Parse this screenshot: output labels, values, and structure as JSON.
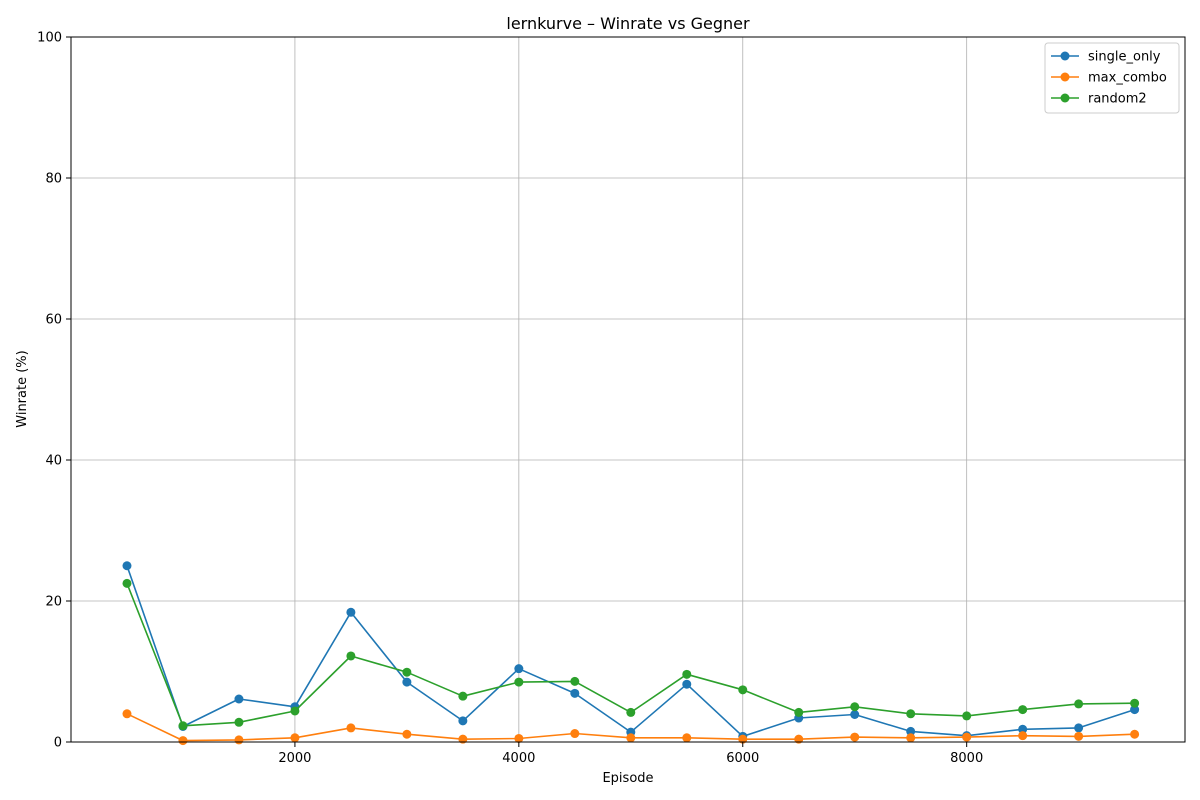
{
  "chart_data": {
    "type": "line",
    "title": "lernkurve – Winrate vs Gegner",
    "xlabel": "Episode",
    "ylabel": "Winrate (%)",
    "xlim": [
      0,
      9950
    ],
    "ylim": [
      0,
      100
    ],
    "xticks": [
      2000,
      4000,
      6000,
      8000
    ],
    "yticks": [
      0,
      20,
      40,
      60,
      80,
      100
    ],
    "grid": true,
    "legend_position": "top-right",
    "x": [
      500,
      1000,
      1500,
      2000,
      2500,
      3000,
      3500,
      4000,
      4500,
      5000,
      5500,
      6000,
      6500,
      7000,
      7500,
      8000,
      8500,
      9000,
      9500
    ],
    "series": [
      {
        "name": "single_only",
        "color": "#1f77b4",
        "values": [
          25.0,
          2.2,
          6.1,
          5.0,
          18.4,
          8.5,
          3.0,
          10.4,
          6.9,
          1.4,
          8.2,
          0.8,
          3.4,
          3.9,
          1.5,
          0.9,
          1.8,
          2.0,
          4.6
        ]
      },
      {
        "name": "max_combo",
        "color": "#ff7f0e",
        "values": [
          4.0,
          0.2,
          0.3,
          0.6,
          2.0,
          1.1,
          0.4,
          0.5,
          1.2,
          0.6,
          0.6,
          0.4,
          0.4,
          0.7,
          0.6,
          0.7,
          0.9,
          0.8,
          1.1
        ]
      },
      {
        "name": "random2",
        "color": "#2ca02c",
        "values": [
          22.5,
          2.3,
          2.8,
          4.4,
          12.2,
          9.9,
          6.5,
          8.5,
          8.6,
          4.2,
          9.6,
          7.4,
          4.2,
          5.0,
          4.0,
          3.7,
          4.6,
          5.4,
          5.5
        ]
      }
    ]
  }
}
